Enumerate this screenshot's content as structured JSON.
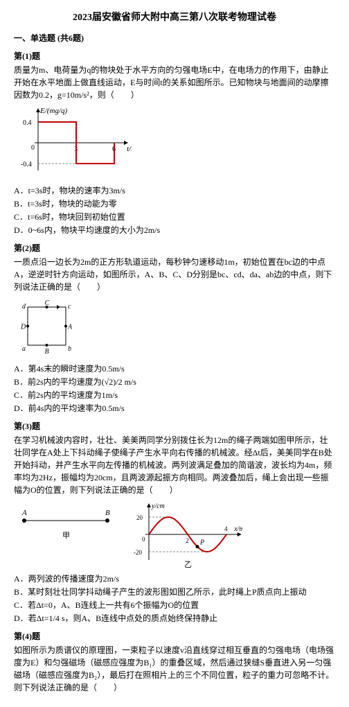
{
  "title": "2023届安徽省师大附中高三第八次联考物理试卷",
  "section1": "一、单选题 (共6题)",
  "q1": {
    "head": "第(1)题",
    "body": "质量为m、电荷量为q的物块处于水平方向的匀强电场E中，在电场力的作用下，由静止开始在水平地面上做直线运动，E与时间t的关系如图所示。已知物块与地面间的动摩擦因数为0.2，g=10m/s²，则（　　）",
    "optA": "A．t=3s时，物块的速率为3m/s",
    "optB": "B．t=3s时，物块的动能为零",
    "optC": "C．t=6s时，物块回到初始位置",
    "optD": "D．0~6s内，物块平均速度的大小为2m/s",
    "chart": {
      "ylabel": "E/(mg/q)",
      "xlabel": "t/s",
      "yticks": [
        "0.4",
        "0",
        "-0.4"
      ],
      "xticks": [
        "3",
        "6"
      ],
      "line_color": "#c00000",
      "axis_color": "#000000"
    }
  },
  "q2": {
    "head": "第(2)题",
    "body": "一质点沿一边长为2m的正方形轨道运动，每秒钟匀速移动1m，初始位置在bc边的中点A，逆逆时针方向运动，如图所示，A、B、C、D分别是bc、cd、da、ab边的中点，则下列说法正确的是（　　）",
    "optA": "A．第4s末的瞬时速度为0.5m/s",
    "optB": "B．前2s内的平均速度为(√2)/2 m/s",
    "optC": "C．前2s内的平均速度为1m/s",
    "optD": "D．前4s内的平均速率为0.5m/s",
    "square": {
      "labels": {
        "tl": "d",
        "tr": "c",
        "bl": "a",
        "br": "b",
        "right": "A",
        "top": "C",
        "left": "D",
        "bottom": "B"
      },
      "stroke": "#000000"
    }
  },
  "q3": {
    "head": "第(3)题",
    "body": "在学习机械波内容时，壮壮、美美两同学分别拨住长为12m的绳子两端如图甲所示，壮壮同学在A处上下抖动绳子使绳子产生水平向右传播的机械波。经Δt后，美美同学在B处开始抖动，并产生水平向左传播的机械波。两列波满足叠加的简谐波，波长均为4m，频率均为2Hz，振幅均为20cm，且两波源起振方向相同。两波叠加后，绳上会出现一些振幅为O的位置，则下列说法正确的是（　　）",
    "optA": "A．两列波的传播速度为2m/s",
    "optB": "B．某时刻壮壮同学抖动绳子产生的波形图如图乙所示，此时绳上P质点向上振动",
    "optC": "C．若Δt=0，A、B连线上一共有6个振幅为O的位置",
    "optD": "D．若Δt=1/4 s，则A、B连线中点处的质点始终保持静止",
    "fig_jia": {
      "A": "A",
      "B": "B",
      "label": "甲",
      "dot_color": "#000"
    },
    "fig_yi": {
      "ylabel": "y/cm",
      "xlabel": "x/m",
      "yticks": [
        "20",
        "0",
        "-20"
      ],
      "xticks": [
        "2",
        "4"
      ],
      "P": "P",
      "label": "乙",
      "curve_color": "#c00000",
      "axis_color": "#000"
    }
  },
  "q4": {
    "head": "第(4)题",
    "body": "如图所示为质谱仪的原理图，一束粒子以速度v沿直线穿过相互垂直的匀强电场（电场强度为E）和匀强磁场（磁感应强度为B₁）的重叠区域，然后通过狭缝S垂直进入另一匀强磁场（磁感应强度为B₂），最后打在照相片上的三个不同位置，粒子的重力可忽略不计。则下列说法正确的是（　　）"
  }
}
